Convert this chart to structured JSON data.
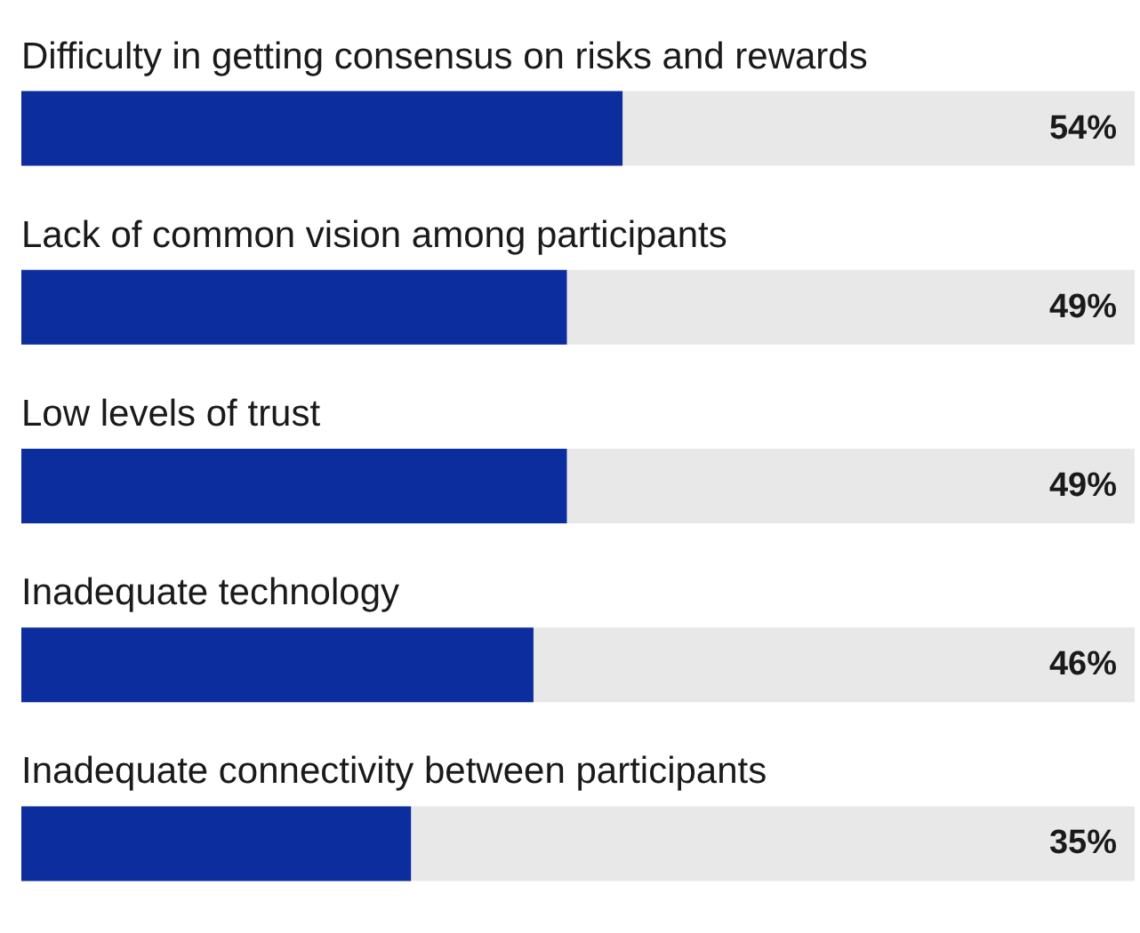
{
  "chart_data": {
    "type": "bar",
    "orientation": "horizontal",
    "categories": [
      "Difficulty in getting consensus on risks and rewards",
      "Lack of common vision among participants",
      "Low levels of trust",
      "Inadequate technology",
      "Inadequate connectivity between participants"
    ],
    "values": [
      54,
      49,
      49,
      46,
      35
    ],
    "value_labels": [
      "54%",
      "49%",
      "49%",
      "46%",
      "35%"
    ],
    "color": "#0b2d9e",
    "xlim": [
      0,
      100
    ]
  }
}
